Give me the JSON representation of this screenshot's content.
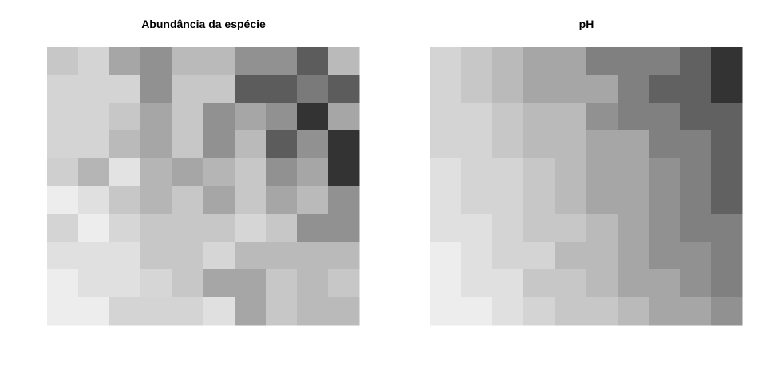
{
  "chart_data": [
    {
      "type": "heatmap",
      "title": "Abundância da espécie",
      "xlabel": "",
      "ylabel": "",
      "colormap": "grayscale (darker = higher value)",
      "grid": false,
      "values": [
        [
          0.78,
          0.83,
          0.65,
          0.57,
          0.73,
          0.73,
          0.57,
          0.57,
          0.36,
          0.73
        ],
        [
          0.83,
          0.83,
          0.83,
          0.57,
          0.78,
          0.78,
          0.36,
          0.36,
          0.48,
          0.36
        ],
        [
          0.83,
          0.83,
          0.78,
          0.65,
          0.78,
          0.57,
          0.65,
          0.57,
          0.2,
          0.65
        ],
        [
          0.83,
          0.83,
          0.73,
          0.65,
          0.78,
          0.57,
          0.73,
          0.36,
          0.57,
          0.2
        ],
        [
          0.81,
          0.71,
          0.89,
          0.71,
          0.65,
          0.71,
          0.78,
          0.57,
          0.65,
          0.2
        ],
        [
          0.93,
          0.88,
          0.78,
          0.71,
          0.78,
          0.65,
          0.78,
          0.65,
          0.73,
          0.57
        ],
        [
          0.83,
          0.93,
          0.84,
          0.78,
          0.78,
          0.78,
          0.84,
          0.78,
          0.57,
          0.57
        ],
        [
          0.88,
          0.88,
          0.88,
          0.78,
          0.78,
          0.84,
          0.73,
          0.73,
          0.73,
          0.73
        ],
        [
          0.93,
          0.88,
          0.88,
          0.84,
          0.78,
          0.65,
          0.65,
          0.78,
          0.73,
          0.78
        ],
        [
          0.93,
          0.93,
          0.83,
          0.83,
          0.83,
          0.88,
          0.65,
          0.78,
          0.73,
          0.73
        ]
      ]
    },
    {
      "type": "heatmap",
      "title": "pH",
      "xlabel": "",
      "ylabel": "",
      "colormap": "grayscale (darker = higher value)",
      "grid": false,
      "values": [
        [
          0.83,
          0.78,
          0.73,
          0.65,
          0.65,
          0.5,
          0.5,
          0.5,
          0.38,
          0.2
        ],
        [
          0.83,
          0.78,
          0.73,
          0.65,
          0.65,
          0.65,
          0.5,
          0.38,
          0.38,
          0.2
        ],
        [
          0.83,
          0.83,
          0.78,
          0.73,
          0.73,
          0.57,
          0.5,
          0.5,
          0.38,
          0.38
        ],
        [
          0.83,
          0.83,
          0.78,
          0.73,
          0.73,
          0.65,
          0.65,
          0.5,
          0.5,
          0.38
        ],
        [
          0.88,
          0.83,
          0.83,
          0.78,
          0.73,
          0.65,
          0.65,
          0.57,
          0.5,
          0.38
        ],
        [
          0.88,
          0.83,
          0.83,
          0.78,
          0.73,
          0.65,
          0.65,
          0.57,
          0.5,
          0.38
        ],
        [
          0.88,
          0.88,
          0.83,
          0.78,
          0.78,
          0.73,
          0.65,
          0.57,
          0.5,
          0.5
        ],
        [
          0.93,
          0.88,
          0.83,
          0.83,
          0.73,
          0.73,
          0.65,
          0.57,
          0.57,
          0.5
        ],
        [
          0.93,
          0.88,
          0.88,
          0.78,
          0.78,
          0.73,
          0.65,
          0.65,
          0.57,
          0.5
        ],
        [
          0.93,
          0.93,
          0.88,
          0.83,
          0.78,
          0.78,
          0.73,
          0.65,
          0.65,
          0.57
        ]
      ]
    }
  ]
}
